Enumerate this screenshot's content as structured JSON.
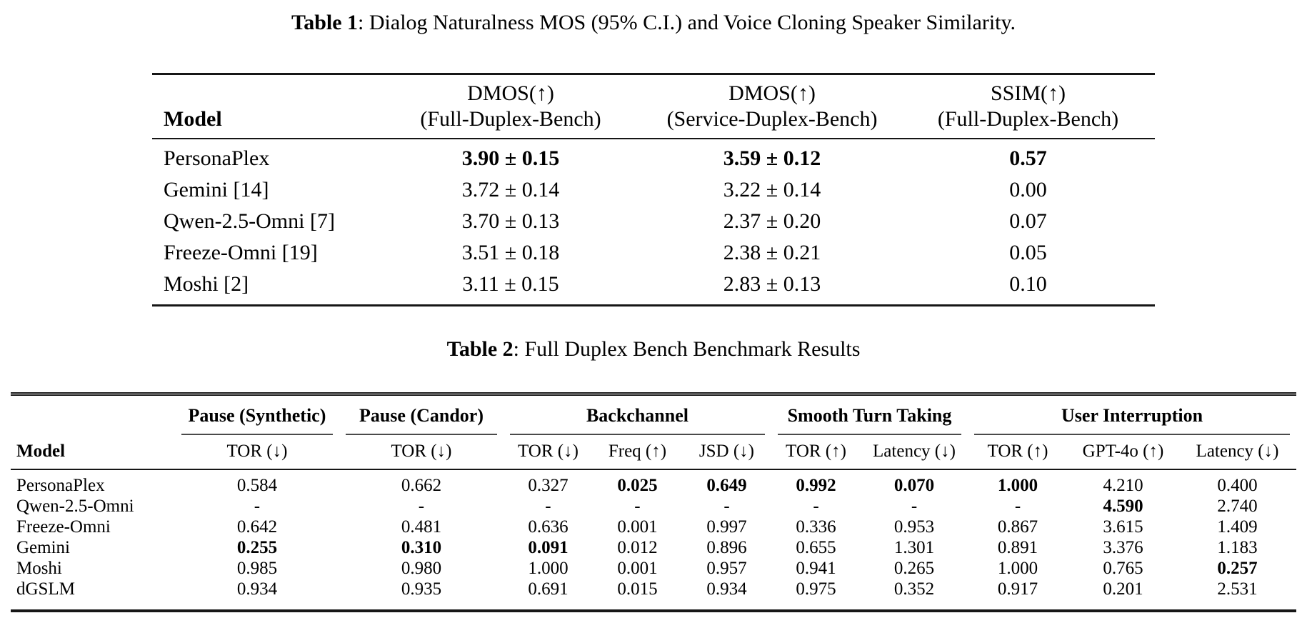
{
  "page": {
    "background_color": "#ffffff",
    "text_color": "#000000"
  },
  "table1": {
    "caption_label": "Table 1",
    "caption_text": ": Dialog Naturalness MOS (95% C.I.) and Voice Cloning Speaker Similarity.",
    "header": {
      "model_label": "Model",
      "cols": [
        {
          "line1": "DMOS(↑)",
          "line2": "(Full-Duplex-Bench)"
        },
        {
          "line1": "DMOS(↑)",
          "line2": "(Service-Duplex-Bench)"
        },
        {
          "line1": "SSIM(↑)",
          "line2": "(Full-Duplex-Bench)"
        }
      ]
    },
    "rows": [
      {
        "model": "PersonaPlex",
        "cells": [
          "3.90 ± 0.15",
          "3.59 ± 0.12",
          "0.57"
        ],
        "bold": [
          true,
          true,
          true
        ]
      },
      {
        "model": "Gemini [14]",
        "cells": [
          "3.72 ± 0.14",
          "3.22 ± 0.14",
          "0.00"
        ],
        "bold": [
          false,
          false,
          false
        ]
      },
      {
        "model": "Qwen-2.5-Omni [7]",
        "cells": [
          "3.70 ± 0.13",
          "2.37 ± 0.20",
          "0.07"
        ],
        "bold": [
          false,
          false,
          false
        ]
      },
      {
        "model": "Freeze-Omni [19]",
        "cells": [
          "3.51 ± 0.18",
          "2.38 ± 0.21",
          "0.05"
        ],
        "bold": [
          false,
          false,
          false
        ]
      },
      {
        "model": "Moshi [2]",
        "cells": [
          "3.11 ± 0.15",
          "2.83 ± 0.13",
          "0.10"
        ],
        "bold": [
          false,
          false,
          false
        ]
      }
    ]
  },
  "table2": {
    "caption_label": "Table 2",
    "caption_text": ": Full Duplex Bench Benchmark Results",
    "groups": [
      {
        "label": "Pause (Synthetic)",
        "span": 1
      },
      {
        "label": "Pause (Candor)",
        "span": 1
      },
      {
        "label": "Backchannel",
        "span": 3
      },
      {
        "label": "Smooth Turn Taking",
        "span": 2
      },
      {
        "label": "User Interruption",
        "span": 3
      }
    ],
    "subheaders": [
      "Model",
      "TOR (↓)",
      "TOR (↓)",
      "TOR (↓)",
      "Freq (↑)",
      "JSD (↓)",
      "TOR (↑)",
      "Latency (↓)",
      "TOR (↑)",
      "GPT-4o (↑)",
      "Latency (↓)"
    ],
    "rows": [
      {
        "model": "PersonaPlex",
        "cells": [
          "0.584",
          "0.662",
          "0.327",
          "0.025",
          "0.649",
          "0.992",
          "0.070",
          "1.000",
          "4.210",
          "0.400"
        ],
        "bold": [
          false,
          false,
          false,
          true,
          true,
          true,
          true,
          true,
          false,
          false
        ]
      },
      {
        "model": "Qwen-2.5-Omni",
        "cells": [
          "-",
          "-",
          "-",
          "-",
          "-",
          "-",
          "-",
          "-",
          "4.590",
          "2.740"
        ],
        "bold": [
          false,
          false,
          false,
          false,
          false,
          false,
          false,
          false,
          true,
          false
        ]
      },
      {
        "model": "Freeze-Omni",
        "cells": [
          "0.642",
          "0.481",
          "0.636",
          "0.001",
          "0.997",
          "0.336",
          "0.953",
          "0.867",
          "3.615",
          "1.409"
        ],
        "bold": [
          false,
          false,
          false,
          false,
          false,
          false,
          false,
          false,
          false,
          false
        ]
      },
      {
        "model": "Gemini",
        "cells": [
          "0.255",
          "0.310",
          "0.091",
          "0.012",
          "0.896",
          "0.655",
          "1.301",
          "0.891",
          "3.376",
          "1.183"
        ],
        "bold": [
          true,
          true,
          true,
          false,
          false,
          false,
          false,
          false,
          false,
          false
        ]
      },
      {
        "model": "Moshi",
        "cells": [
          "0.985",
          "0.980",
          "1.000",
          "0.001",
          "0.957",
          "0.941",
          "0.265",
          "1.000",
          "0.765",
          "0.257"
        ],
        "bold": [
          false,
          false,
          false,
          false,
          false,
          false,
          false,
          false,
          false,
          true
        ]
      },
      {
        "model": "dGSLM",
        "cells": [
          "0.934",
          "0.935",
          "0.691",
          "0.015",
          "0.934",
          "0.975",
          "0.352",
          "0.917",
          "0.201",
          "2.531"
        ],
        "bold": [
          false,
          false,
          false,
          false,
          false,
          false,
          false,
          false,
          false,
          false
        ]
      }
    ]
  }
}
